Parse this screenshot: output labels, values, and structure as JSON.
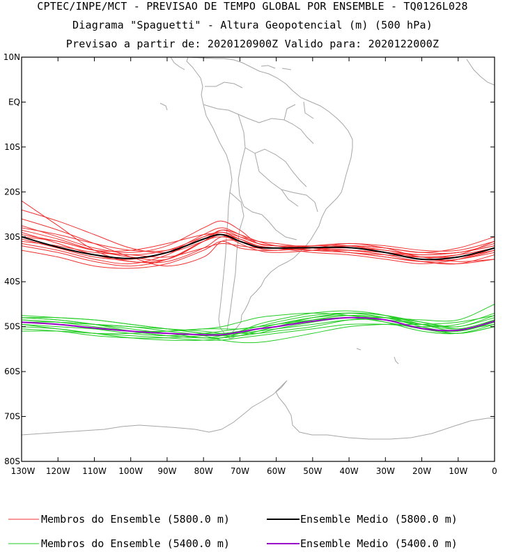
{
  "titles": [
    "CPTEC/INPE/MCT - PREVISAO DE TEMPO GLOBAL POR ENSEMBLE - TQ0126L028",
    "Diagrama \"Spaguetti\" - Altura Geopotencial (m) (500 hPa)",
    "Previsao a partir de: 2020120900Z  Valido para: 2020122000Z"
  ],
  "legend": {
    "members_5800": "Membros do Ensemble (5800.0 m)",
    "mean_5800": "Ensemble Medio (5800.0 m)",
    "members_5400": "Membros do Ensemble (5400.0 m)",
    "mean_5400": "Ensemble Medio (5400.0 m)"
  },
  "colors": {
    "members_5800": "#f03030",
    "mean_5800": "#000000",
    "members_5400": "#22cc22",
    "mean_5400": "#9a00c8",
    "coastline": "#a6a6a6"
  },
  "chart_data": {
    "type": "line",
    "title": "Diagrama \"Spaguetti\" - Altura Geopotencial (m) (500 hPa)",
    "xlim": [
      -130,
      0
    ],
    "ylim": [
      -80,
      10
    ],
    "x_ticks": [
      {
        "v": -130,
        "label": "130W"
      },
      {
        "v": -120,
        "label": "120W"
      },
      {
        "v": -110,
        "label": "110W"
      },
      {
        "v": -100,
        "label": "100W"
      },
      {
        "v": -90,
        "label": "90W"
      },
      {
        "v": -80,
        "label": "80W"
      },
      {
        "v": -70,
        "label": "70W"
      },
      {
        "v": -60,
        "label": "60W"
      },
      {
        "v": -50,
        "label": "50W"
      },
      {
        "v": -40,
        "label": "40W"
      },
      {
        "v": -30,
        "label": "30W"
      },
      {
        "v": -20,
        "label": "20W"
      },
      {
        "v": -10,
        "label": "10W"
      },
      {
        "v": 0,
        "label": "0"
      }
    ],
    "y_ticks": [
      {
        "v": 10,
        "label": "10N"
      },
      {
        "v": 0,
        "label": "EQ"
      },
      {
        "v": -10,
        "label": "10S"
      },
      {
        "v": -20,
        "label": "20S"
      },
      {
        "v": -30,
        "label": "30S"
      },
      {
        "v": -40,
        "label": "40S"
      },
      {
        "v": -50,
        "label": "50S"
      },
      {
        "v": -60,
        "label": "60S"
      },
      {
        "v": -70,
        "label": "70S"
      },
      {
        "v": -80,
        "label": "80S"
      }
    ],
    "x": [
      -130,
      -120,
      -110,
      -100,
      -90,
      -80,
      -75,
      -70,
      -65,
      -60,
      -50,
      -40,
      -30,
      -20,
      -10,
      0
    ],
    "series": [
      {
        "name": "Ensemble Medio (5800.0 m)",
        "group": "mean_5800",
        "values": [
          -30,
          -32.3,
          -34,
          -34.8,
          -33.5,
          -30.5,
          -29.5,
          -31,
          -32.3,
          -32.5,
          -32.4,
          -32.4,
          -33.5,
          -35,
          -34.5,
          -32.5
        ]
      },
      {
        "name": "Ensemble Medio (5400.0 m)",
        "group": "mean_5400",
        "values": [
          -49,
          -49.5,
          -50.3,
          -51,
          -51.5,
          -51.8,
          -51.8,
          -51.2,
          -50.5,
          -50,
          -48.8,
          -48,
          -48.5,
          -50.4,
          -50.8,
          -48.8
        ]
      },
      {
        "group": "members_5800",
        "values": [
          -28.5,
          -30.5,
          -33,
          -34.5,
          -35,
          -31,
          -28.5,
          -29.5,
          -31,
          -32,
          -33,
          -33.5,
          -34.5,
          -35.5,
          -35,
          -33.5
        ]
      },
      {
        "group": "members_5800",
        "values": [
          -31.5,
          -33,
          -35,
          -36,
          -34,
          -30,
          -29,
          -30.5,
          -32,
          -32.5,
          -32,
          -32,
          -33,
          -34,
          -33.5,
          -32
        ]
      },
      {
        "group": "members_5800",
        "values": [
          -27.5,
          -30,
          -32.5,
          -33.5,
          -32,
          -28,
          -26.5,
          -28.5,
          -31.5,
          -32,
          -32.5,
          -33,
          -34,
          -35.5,
          -36,
          -34
        ]
      },
      {
        "group": "members_5800",
        "values": [
          -33,
          -34.5,
          -36.5,
          -37,
          -36,
          -33,
          -31,
          -32.5,
          -33,
          -33,
          -32.5,
          -31.5,
          -32.5,
          -34.5,
          -34,
          -31
        ]
      },
      {
        "group": "members_5800",
        "values": [
          -30,
          -31,
          -33,
          -33,
          -31.5,
          -29.5,
          -29.5,
          -31.5,
          -33,
          -33.5,
          -33,
          -32,
          -32.5,
          -33.5,
          -32.5,
          -30
        ]
      },
      {
        "group": "members_5800",
        "values": [
          -29,
          -31.5,
          -34,
          -35.5,
          -35.5,
          -32.5,
          -30,
          -30.5,
          -32,
          -32.5,
          -33.5,
          -34,
          -35,
          -36,
          -35,
          -32.5
        ]
      },
      {
        "group": "members_5800",
        "values": [
          -32,
          -33.5,
          -35.5,
          -36.5,
          -35,
          -31,
          -30,
          -31,
          -32.5,
          -33,
          -32,
          -31.5,
          -32,
          -33,
          -33,
          -31
        ]
      },
      {
        "group": "members_5800",
        "values": [
          -28,
          -29.5,
          -31.5,
          -33,
          -33,
          -30.5,
          -28.5,
          -30,
          -31.5,
          -32,
          -32.5,
          -33.5,
          -34.5,
          -35.5,
          -36,
          -35
        ]
      },
      {
        "group": "members_5800",
        "values": [
          -30.5,
          -32.5,
          -34.5,
          -35,
          -33.5,
          -29.5,
          -28,
          -29.5,
          -31.5,
          -32,
          -32,
          -32,
          -33.5,
          -35,
          -35,
          -33
        ]
      },
      {
        "group": "members_5800",
        "values": [
          -31,
          -32,
          -33.5,
          -34,
          -34.5,
          -32.5,
          -31.5,
          -32,
          -32.5,
          -32.5,
          -33,
          -33,
          -33.5,
          -34,
          -33.5,
          -32
        ]
      },
      {
        "group": "members_5800",
        "values": [
          -26,
          -28.5,
          -31.5,
          -34.5,
          -36.5,
          -34.5,
          -31,
          -31,
          -32,
          -32.5,
          -32.5,
          -32.5,
          -33,
          -34.5,
          -35.5,
          -35
        ]
      },
      {
        "group": "members_5800",
        "values": [
          -29.5,
          -31,
          -33,
          -34,
          -33,
          -30,
          -29,
          -30,
          -31,
          -31.5,
          -32.5,
          -33.5,
          -34,
          -34.5,
          -34,
          -32.5
        ]
      },
      {
        "group": "members_5800",
        "values": [
          -22,
          -27.5,
          -33,
          -35.5,
          -35,
          -31,
          -29.5,
          -30.5,
          -32,
          -32.5,
          -33,
          -33,
          -33.5,
          -34.5,
          -34.5,
          -33
        ]
      },
      {
        "group": "members_5800",
        "values": [
          -24,
          -26.5,
          -29.5,
          -32.5,
          -33.5,
          -31,
          -29.5,
          -31,
          -32.5,
          -33,
          -32.5,
          -32,
          -32.5,
          -33.5,
          -33.5,
          -31.5
        ]
      },
      {
        "group": "members_5400",
        "values": [
          -48,
          -48.5,
          -49.5,
          -50.5,
          -51.5,
          -52.5,
          -52.5,
          -52,
          -51,
          -50,
          -48,
          -47,
          -47.5,
          -49.5,
          -51,
          -49
        ]
      },
      {
        "group": "members_5400",
        "values": [
          -49.5,
          -50,
          -50.5,
          -51,
          -51,
          -50.5,
          -50,
          -49,
          -48,
          -47.5,
          -47,
          -47.5,
          -49,
          -51,
          -51.5,
          -49.5
        ]
      },
      {
        "group": "members_5400",
        "values": [
          -50.5,
          -51,
          -52,
          -52.5,
          -52.5,
          -52,
          -52,
          -51.5,
          -51,
          -50.5,
          -49.5,
          -48.5,
          -48.5,
          -49.5,
          -50,
          -48
        ]
      },
      {
        "group": "members_5400",
        "values": [
          -48.5,
          -49,
          -49.5,
          -50,
          -50.5,
          -51,
          -51.5,
          -51.5,
          -51.5,
          -51,
          -50,
          -48.5,
          -48,
          -49,
          -50,
          -47.5
        ]
      },
      {
        "group": "members_5400",
        "values": [
          -47.5,
          -48,
          -48.5,
          -49.5,
          -50.5,
          -51.5,
          -51.5,
          -51,
          -50,
          -49,
          -47.5,
          -47,
          -48,
          -50,
          -51.5,
          -50
        ]
      },
      {
        "group": "members_5400",
        "values": [
          -50,
          -50.5,
          -51.5,
          -52.5,
          -53,
          -53,
          -52.5,
          -51.5,
          -50.5,
          -49.5,
          -48,
          -47.5,
          -48.5,
          -50.5,
          -51,
          -49
        ]
      },
      {
        "group": "members_5400",
        "values": [
          -49,
          -49,
          -49.5,
          -50,
          -51,
          -52,
          -53,
          -53.5,
          -53.5,
          -53,
          -51.5,
          -50,
          -49.5,
          -49.5,
          -49,
          -47.5
        ]
      },
      {
        "group": "members_5400",
        "values": [
          -48,
          -48.5,
          -49.5,
          -51,
          -52,
          -52.5,
          -52.5,
          -52,
          -51,
          -50,
          -48.5,
          -47.5,
          -48,
          -49.5,
          -50.5,
          -48.5
        ]
      },
      {
        "group": "members_5400",
        "values": [
          -49.5,
          -50.5,
          -51.5,
          -51.5,
          -51,
          -50.5,
          -50.5,
          -50.5,
          -50,
          -49.5,
          -48,
          -47,
          -47.5,
          -49,
          -50.5,
          -49.5
        ]
      },
      {
        "group": "members_5400",
        "values": [
          -48.5,
          -49,
          -50,
          -51,
          -52,
          -52.5,
          -52,
          -51,
          -49.5,
          -48.5,
          -47,
          -46.5,
          -47.5,
          -50,
          -51,
          -48.5
        ]
      },
      {
        "group": "members_5400",
        "values": [
          -51,
          -51,
          -51.5,
          -52,
          -52.5,
          -53,
          -53,
          -52.5,
          -52,
          -51.5,
          -50.5,
          -49.5,
          -49.5,
          -50,
          -49.5,
          -47
        ]
      },
      {
        "group": "members_5400",
        "values": [
          -49,
          -49.5,
          -50.5,
          -51.5,
          -52,
          -51.5,
          -51,
          -50.5,
          -50,
          -49.5,
          -48.5,
          -48,
          -49,
          -50.5,
          -51.5,
          -50
        ]
      },
      {
        "group": "members_5400",
        "values": [
          -48,
          -48,
          -48.5,
          -49.5,
          -50.5,
          -51.5,
          -52,
          -52,
          -51.5,
          -50.5,
          -49,
          -48,
          -48,
          -48.5,
          -48.5,
          -45
        ]
      }
    ]
  }
}
